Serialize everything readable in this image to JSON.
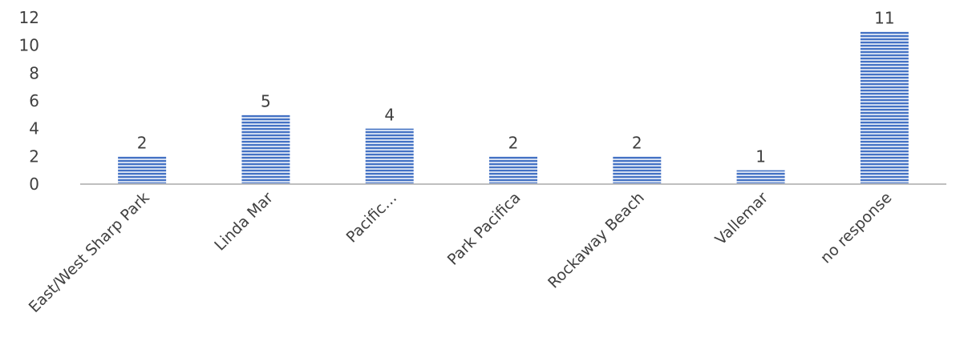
{
  "chart_data": {
    "type": "bar",
    "title": "",
    "xlabel": "",
    "ylabel": "",
    "categories": [
      "East/West Sharp Park",
      "Linda Mar",
      "Pacific…",
      "Park Pacifica",
      "Rockaway Beach",
      "Vallemar",
      "no response"
    ],
    "values": [
      2,
      5,
      4,
      2,
      2,
      1,
      11
    ],
    "ylim": [
      0,
      12
    ],
    "yticks": [
      0,
      2,
      4,
      6,
      8,
      10,
      12
    ],
    "grid": false,
    "legend": "none",
    "data_labels": true,
    "bar_color": "#4472C4",
    "bar_fill": "horizontal-stripes"
  }
}
